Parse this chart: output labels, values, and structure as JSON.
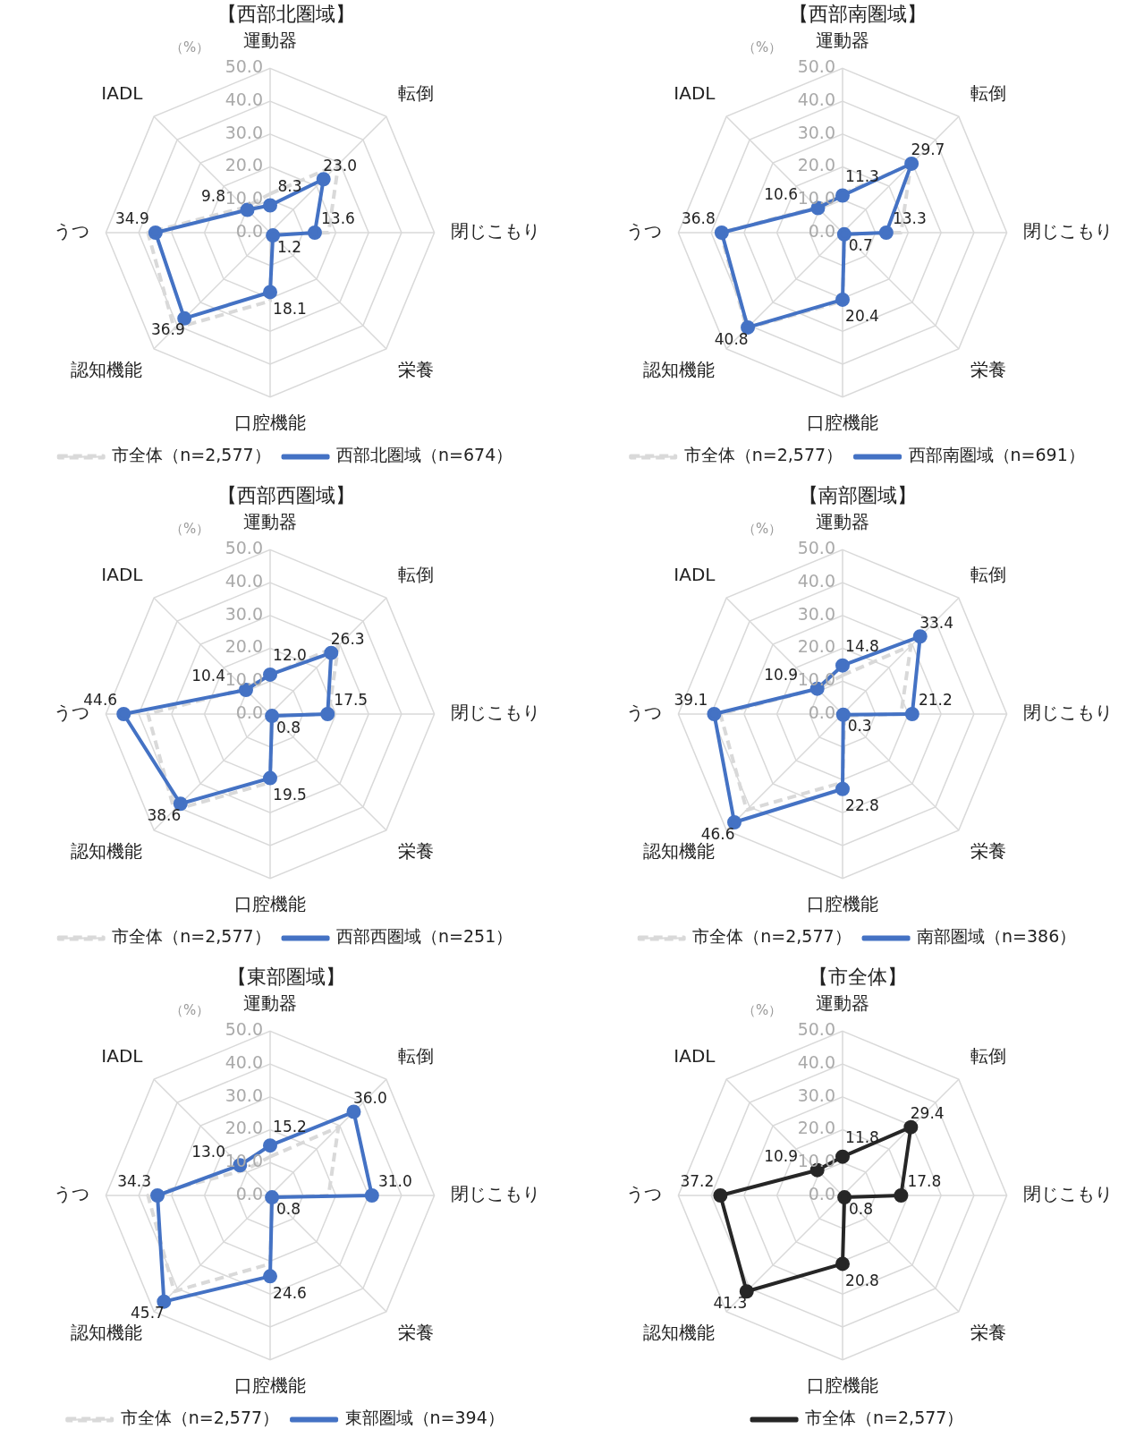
{
  "chart_data": [
    {
      "type": "radar",
      "title": "【西部北圏域】",
      "ylabel": "（%）",
      "categories": [
        "運動器",
        "転倒",
        "閉じこもり",
        "栄養",
        "口腔機能",
        "認知機能",
        "うつ",
        "IADL"
      ],
      "ylim": [
        0,
        50
      ],
      "yticks": [
        {
          "value": 0,
          "label": "0.0"
        },
        {
          "value": 10,
          "label": "10.0"
        },
        {
          "value": 20,
          "label": "20.0"
        },
        {
          "value": 30,
          "label": "30.0"
        },
        {
          "value": 40,
          "label": "40.0"
        },
        {
          "value": 50,
          "label": "50.0"
        }
      ],
      "grid": true,
      "legend": "bottom",
      "marker": "circle",
      "series": [
        {
          "name": "市全体（n=2,577）",
          "color": "#d9d9d9",
          "line_style": "dashed",
          "marker": "none",
          "values": [
            11.8,
            29.4,
            17.8,
            0.8,
            20.8,
            41.3,
            37.2,
            10.9
          ]
        },
        {
          "name": "西部北圏域（n=674）",
          "color": "#4472c4",
          "line_style": "solid",
          "values": [
            8.3,
            23.0,
            13.6,
            1.2,
            18.1,
            36.9,
            34.9,
            9.8
          ],
          "value_labels": [
            "8.3",
            "23.0",
            "13.6",
            "1.2",
            "18.1",
            "36.9",
            "34.9",
            "9.8"
          ]
        }
      ]
    },
    {
      "type": "radar",
      "title": "【西部南圏域】",
      "ylabel": "（%）",
      "categories": [
        "運動器",
        "転倒",
        "閉じこもり",
        "栄養",
        "口腔機能",
        "認知機能",
        "うつ",
        "IADL"
      ],
      "ylim": [
        0,
        50
      ],
      "yticks": [
        {
          "value": 0,
          "label": "0.0"
        },
        {
          "value": 10,
          "label": "10.0"
        },
        {
          "value": 20,
          "label": "20.0"
        },
        {
          "value": 30,
          "label": "30.0"
        },
        {
          "value": 40,
          "label": "40.0"
        },
        {
          "value": 50,
          "label": "50.0"
        }
      ],
      "grid": true,
      "legend": "bottom",
      "marker": "circle",
      "series": [
        {
          "name": "市全体（n=2,577）",
          "color": "#d9d9d9",
          "line_style": "dashed",
          "marker": "none",
          "values": [
            11.8,
            29.4,
            17.8,
            0.8,
            20.8,
            41.3,
            37.2,
            10.9
          ]
        },
        {
          "name": "西部南圏域（n=691）",
          "color": "#4472c4",
          "line_style": "solid",
          "values": [
            11.3,
            29.7,
            13.3,
            0.7,
            20.4,
            40.8,
            36.8,
            10.6
          ],
          "value_labels": [
            "11.3",
            "29.7",
            "13.3",
            "0.7",
            "20.4",
            "40.8",
            "36.8",
            "10.6"
          ]
        }
      ]
    },
    {
      "type": "radar",
      "title": "【西部西圏域】",
      "ylabel": "（%）",
      "categories": [
        "運動器",
        "転倒",
        "閉じこもり",
        "栄養",
        "口腔機能",
        "認知機能",
        "うつ",
        "IADL"
      ],
      "ylim": [
        0,
        50
      ],
      "yticks": [
        {
          "value": 0,
          "label": "0.0"
        },
        {
          "value": 10,
          "label": "10.0"
        },
        {
          "value": 20,
          "label": "20.0"
        },
        {
          "value": 30,
          "label": "30.0"
        },
        {
          "value": 40,
          "label": "40.0"
        },
        {
          "value": 50,
          "label": "50.0"
        }
      ],
      "grid": true,
      "legend": "bottom",
      "marker": "circle",
      "series": [
        {
          "name": "市全体（n=2,577）",
          "color": "#d9d9d9",
          "line_style": "dashed",
          "marker": "none",
          "values": [
            11.8,
            29.4,
            17.8,
            0.8,
            20.8,
            41.3,
            37.2,
            10.9
          ]
        },
        {
          "name": "西部西圏域（n=251）",
          "color": "#4472c4",
          "line_style": "solid",
          "values": [
            12.0,
            26.3,
            17.5,
            0.8,
            19.5,
            38.6,
            44.6,
            10.4
          ],
          "value_labels": [
            "12.0",
            "26.3",
            "17.5",
            "0.8",
            "19.5",
            "38.6",
            "44.6",
            "10.4"
          ]
        }
      ]
    },
    {
      "type": "radar",
      "title": "【南部圏域】",
      "ylabel": "（%）",
      "categories": [
        "運動器",
        "転倒",
        "閉じこもり",
        "栄養",
        "口腔機能",
        "認知機能",
        "うつ",
        "IADL"
      ],
      "ylim": [
        0,
        50
      ],
      "yticks": [
        {
          "value": 0,
          "label": "0.0"
        },
        {
          "value": 10,
          "label": "10.0"
        },
        {
          "value": 20,
          "label": "20.0"
        },
        {
          "value": 30,
          "label": "30.0"
        },
        {
          "value": 40,
          "label": "40.0"
        },
        {
          "value": 50,
          "label": "50.0"
        }
      ],
      "grid": true,
      "legend": "bottom",
      "marker": "circle",
      "series": [
        {
          "name": "市全体（n=2,577）",
          "color": "#d9d9d9",
          "line_style": "dashed",
          "marker": "none",
          "values": [
            11.8,
            29.4,
            17.8,
            0.8,
            20.8,
            41.3,
            37.2,
            10.9
          ]
        },
        {
          "name": "南部圏域（n=386）",
          "color": "#4472c4",
          "line_style": "solid",
          "values": [
            14.8,
            33.4,
            21.2,
            0.3,
            22.8,
            46.6,
            39.1,
            10.9
          ],
          "value_labels": [
            "14.8",
            "33.4",
            "21.2",
            "0.3",
            "22.8",
            "46.6",
            "39.1",
            "10.9"
          ]
        }
      ]
    },
    {
      "type": "radar",
      "title": "【東部圏域】",
      "ylabel": "（%）",
      "categories": [
        "運動器",
        "転倒",
        "閉じこもり",
        "栄養",
        "口腔機能",
        "認知機能",
        "うつ",
        "IADL"
      ],
      "ylim": [
        0,
        50
      ],
      "yticks": [
        {
          "value": 0,
          "label": "0.0"
        },
        {
          "value": 10,
          "label": "10.0"
        },
        {
          "value": 20,
          "label": "20.0"
        },
        {
          "value": 30,
          "label": "30.0"
        },
        {
          "value": 40,
          "label": "40.0"
        },
        {
          "value": 50,
          "label": "50.0"
        }
      ],
      "grid": true,
      "legend": "bottom",
      "marker": "circle",
      "series": [
        {
          "name": "市全体（n=2,577）",
          "color": "#d9d9d9",
          "line_style": "dashed",
          "marker": "none",
          "values": [
            11.8,
            29.4,
            17.8,
            0.8,
            20.8,
            41.3,
            37.2,
            10.9
          ]
        },
        {
          "name": "東部圏域（n=394）",
          "color": "#4472c4",
          "line_style": "solid",
          "values": [
            15.2,
            36.0,
            31.0,
            0.8,
            24.6,
            45.7,
            34.3,
            13.0
          ],
          "value_labels": [
            "15.2",
            "36.0",
            "31.0",
            "0.8",
            "24.6",
            "45.7",
            "34.3",
            "13.0"
          ]
        }
      ]
    },
    {
      "type": "radar",
      "title": "【市全体】",
      "ylabel": "（%）",
      "categories": [
        "運動器",
        "転倒",
        "閉じこもり",
        "栄養",
        "口腔機能",
        "認知機能",
        "うつ",
        "IADL"
      ],
      "ylim": [
        0,
        50
      ],
      "yticks": [
        {
          "value": 0,
          "label": "0.0"
        },
        {
          "value": 10,
          "label": "10.0"
        },
        {
          "value": 20,
          "label": "20.0"
        },
        {
          "value": 30,
          "label": "30.0"
        },
        {
          "value": 40,
          "label": "40.0"
        },
        {
          "value": 50,
          "label": "50.0"
        }
      ],
      "grid": true,
      "legend": "bottom",
      "marker": "circle",
      "series": [
        {
          "name": "市全体（n=2,577）",
          "color": "#262626",
          "line_style": "solid",
          "values": [
            11.8,
            29.4,
            17.8,
            0.8,
            20.8,
            41.3,
            37.2,
            10.9
          ],
          "value_labels": [
            "11.8",
            "29.4",
            "17.8",
            "0.8",
            "20.8",
            "41.3",
            "37.2",
            "10.9"
          ]
        }
      ]
    }
  ]
}
